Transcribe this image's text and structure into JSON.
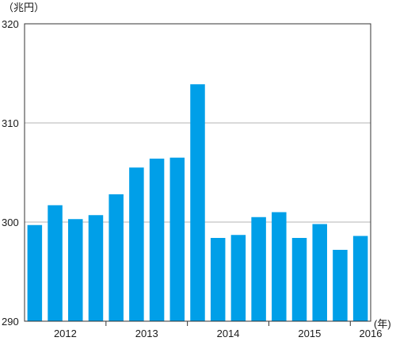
{
  "chart_data": {
    "type": "bar",
    "unit_label": "（兆円）",
    "x_unit_label": "(年)",
    "ylim": [
      290,
      320
    ],
    "y_ticks": [
      "290",
      "300",
      "310",
      "320"
    ],
    "grid": "horizontal",
    "bar_color": "#009fe8",
    "categories": [
      "2012Q1",
      "2012Q2",
      "2012Q3",
      "2012Q4",
      "2013Q1",
      "2013Q2",
      "2013Q3",
      "2013Q4",
      "2014Q1",
      "2014Q2",
      "2014Q3",
      "2014Q4",
      "2015Q1",
      "2015Q2",
      "2015Q3",
      "2015Q4",
      "2016Q1"
    ],
    "values": [
      299.7,
      301.7,
      300.3,
      300.7,
      302.8,
      305.5,
      306.4,
      306.5,
      313.9,
      298.4,
      298.7,
      300.5,
      301.0,
      298.4,
      299.8,
      297.2,
      298.6
    ],
    "year_labels": [
      {
        "label": "2012",
        "center_index": 1.5
      },
      {
        "label": "2013",
        "center_index": 5.5
      },
      {
        "label": "2014",
        "center_index": 9.5
      },
      {
        "label": "2015",
        "center_index": 13.5
      },
      {
        "label": "2016",
        "center_index": 16.5
      }
    ]
  }
}
